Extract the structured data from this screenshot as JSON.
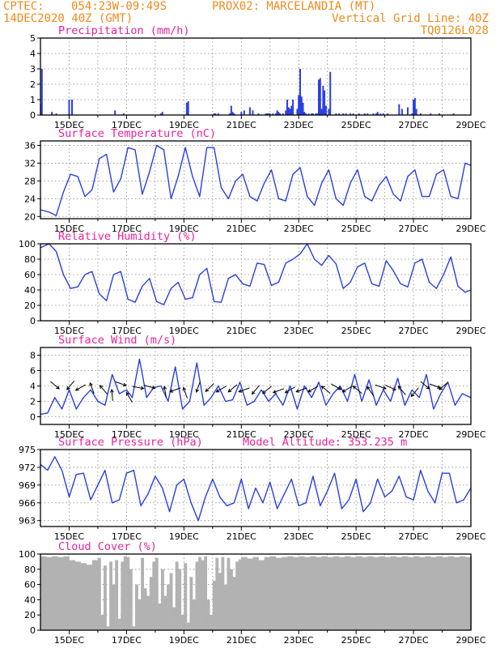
{
  "header": {
    "source": "CPTEC:",
    "location_coords": "054:23W-09:49S",
    "location_name": "PROX02: MARCELANDIA (MT)",
    "date": "14DEC2020 40Z (GMT)",
    "grid_info": "Vertical Grid Line: 40Z",
    "run_code": "TQ0126L028"
  },
  "colors": {
    "line": "#2a3fe0",
    "bar": "#2a3fe0",
    "cloud": "#b2b2b2",
    "title": "#e8239a",
    "header": "#f08a1c"
  },
  "x_axis": {
    "ticks": [
      "15DEC",
      "17DEC",
      "19DEC",
      "21DEC",
      "23DEC",
      "25DEC",
      "27DEC",
      "29DEC"
    ],
    "range_days": [
      14.0,
      29.0
    ]
  },
  "chart_data": [
    {
      "id": "precip",
      "type": "bar",
      "title": "Precipitation (mm/h)",
      "ylim": [
        0,
        5
      ],
      "yticks": [
        0,
        1,
        2,
        3,
        4,
        5
      ],
      "x": [
        14.02,
        14.05,
        14.4,
        14.55,
        15.0,
        15.1,
        16.6,
        16.9,
        18.2,
        18.25,
        19.1,
        19.15,
        20.05,
        20.1,
        20.2,
        20.6,
        20.65,
        20.7,
        20.75,
        21.0,
        21.1,
        21.3,
        21.4,
        21.6,
        21.85,
        21.9,
        21.95,
        22.0,
        22.1,
        22.2,
        22.25,
        22.3,
        22.35,
        22.45,
        22.55,
        22.6,
        22.65,
        22.7,
        22.75,
        22.8,
        22.95,
        23.0,
        23.05,
        23.1,
        23.15,
        23.2,
        23.25,
        23.35,
        23.45,
        23.5,
        23.6,
        23.65,
        23.7,
        23.75,
        23.8,
        23.85,
        23.9,
        23.95,
        24.05,
        24.1,
        24.3,
        24.4,
        24.55,
        24.65,
        24.8,
        24.9,
        25.1,
        25.3,
        25.4,
        25.6,
        25.7,
        25.75,
        25.85,
        25.95,
        26.1,
        26.5,
        26.6,
        26.8,
        26.95,
        27.0,
        27.05,
        27.1,
        27.25,
        27.6,
        27.9,
        28.4
      ],
      "values": [
        0.7,
        3.0,
        0.2,
        0.1,
        1.0,
        1.0,
        0.3,
        0.1,
        0.1,
        0.2,
        0.8,
        0.9,
        0.1,
        0.1,
        0.1,
        0.1,
        0.6,
        0.2,
        0.1,
        0.2,
        0.3,
        0.5,
        0.3,
        0.1,
        0.1,
        0.1,
        0.1,
        0.1,
        0.1,
        0.1,
        0.3,
        0.2,
        0.1,
        0.1,
        0.3,
        1.0,
        0.5,
        0.4,
        0.6,
        1.0,
        0.4,
        1.3,
        3.0,
        1.2,
        0.8,
        0.2,
        0.1,
        0.1,
        0.1,
        0.1,
        0.1,
        0.1,
        2.3,
        2.4,
        0.4,
        1.9,
        1.6,
        0.6,
        0.4,
        2.8,
        0.1,
        0.1,
        0.1,
        0.1,
        0.1,
        0.1,
        0.1,
        0.1,
        0.1,
        0.1,
        0.1,
        0.2,
        0.1,
        0.1,
        0.1,
        0.7,
        0.4,
        0.5,
        0.1,
        1.0,
        1.1,
        0.4,
        0.1,
        0.1,
        0.1,
        0.1
      ]
    },
    {
      "id": "temp",
      "type": "line",
      "title": "Surface Temperature (nC)",
      "ylim": [
        19.5,
        37
      ],
      "yticks": [
        20,
        24,
        28,
        32,
        36
      ],
      "x": [
        14.0,
        14.3,
        14.55,
        14.8,
        15.05,
        15.3,
        15.55,
        15.8,
        16.05,
        16.3,
        16.55,
        16.8,
        17.05,
        17.3,
        17.55,
        17.8,
        18.05,
        18.3,
        18.55,
        18.8,
        19.05,
        19.3,
        19.55,
        19.8,
        20.05,
        20.3,
        20.55,
        20.8,
        21.05,
        21.3,
        21.55,
        21.8,
        22.05,
        22.3,
        22.55,
        22.8,
        23.05,
        23.3,
        23.55,
        23.8,
        24.05,
        24.3,
        24.55,
        24.8,
        25.05,
        25.3,
        25.55,
        25.8,
        26.05,
        26.3,
        26.55,
        26.8,
        27.05,
        27.3,
        27.55,
        27.8,
        28.05,
        28.3,
        28.55,
        28.8,
        29.0
      ],
      "values": [
        21.5,
        21.0,
        20.2,
        25.5,
        29.5,
        29.0,
        24.5,
        26.0,
        33.0,
        34.0,
        25.5,
        28.5,
        35.5,
        35.0,
        25.0,
        30.0,
        36.0,
        35.0,
        24.0,
        29.0,
        35.5,
        29.0,
        24.5,
        35.5,
        35.5,
        26.5,
        24.0,
        28.0,
        29.5,
        24.5,
        23.5,
        27.5,
        30.5,
        24.0,
        23.5,
        29.5,
        31.0,
        24.5,
        22.5,
        27.5,
        30.5,
        24.0,
        22.5,
        27.5,
        30.5,
        24.5,
        23.5,
        27.0,
        29.0,
        25.0,
        23.5,
        29.0,
        30.5,
        24.5,
        24.5,
        29.5,
        30.5,
        24.5,
        24.0,
        32.0,
        31.5
      ]
    },
    {
      "id": "rh",
      "type": "line",
      "title": "Relative Humidity (%)",
      "ylim": [
        0,
        100
      ],
      "yticks": [
        0,
        20,
        40,
        60,
        80,
        100
      ],
      "x": [
        14.0,
        14.3,
        14.55,
        14.8,
        15.05,
        15.3,
        15.55,
        15.8,
        16.05,
        16.3,
        16.55,
        16.8,
        17.05,
        17.3,
        17.55,
        17.8,
        18.05,
        18.3,
        18.55,
        18.8,
        19.05,
        19.3,
        19.55,
        19.8,
        20.05,
        20.3,
        20.55,
        20.8,
        21.05,
        21.3,
        21.55,
        21.8,
        22.05,
        22.3,
        22.55,
        22.8,
        23.05,
        23.3,
        23.55,
        23.8,
        24.05,
        24.3,
        24.55,
        24.8,
        25.05,
        25.3,
        25.55,
        25.8,
        26.05,
        26.3,
        26.55,
        26.8,
        27.05,
        27.3,
        27.55,
        27.8,
        28.05,
        28.3,
        28.55,
        28.8,
        29.0
      ],
      "values": [
        95,
        100,
        90,
        60,
        42,
        44,
        60,
        64,
        35,
        26,
        60,
        64,
        28,
        24,
        45,
        55,
        25,
        21,
        42,
        50,
        28,
        30,
        60,
        68,
        25,
        24,
        55,
        60,
        48,
        45,
        75,
        73,
        46,
        50,
        75,
        80,
        87,
        100,
        80,
        72,
        85,
        74,
        42,
        50,
        70,
        75,
        48,
        45,
        78,
        65,
        48,
        44,
        75,
        80,
        50,
        42,
        60,
        83,
        45,
        37,
        40
      ]
    },
    {
      "id": "wind",
      "type": "line",
      "title": "Surface Wind (m/s)",
      "ylim": [
        -1,
        9
      ],
      "yticks": [
        0,
        2,
        4,
        6,
        8
      ],
      "x": [
        14.0,
        14.25,
        14.5,
        14.75,
        15.0,
        15.25,
        15.5,
        15.75,
        16.0,
        16.25,
        16.5,
        16.75,
        17.0,
        17.2,
        17.45,
        17.7,
        17.95,
        18.2,
        18.45,
        18.7,
        18.95,
        19.2,
        19.45,
        19.7,
        19.95,
        20.2,
        20.45,
        20.7,
        20.95,
        21.2,
        21.45,
        21.7,
        21.95,
        22.2,
        22.45,
        22.7,
        22.95,
        23.2,
        23.45,
        23.7,
        23.95,
        24.2,
        24.45,
        24.7,
        24.95,
        25.2,
        25.45,
        25.7,
        25.95,
        26.2,
        26.45,
        26.7,
        26.95,
        27.2,
        27.45,
        27.7,
        27.95,
        28.2,
        28.45,
        28.7,
        29.0
      ],
      "values": [
        0.3,
        0.5,
        2.5,
        1.0,
        3.5,
        1.0,
        2.5,
        3.5,
        2.0,
        1.5,
        5.5,
        3.0,
        3.5,
        2.5,
        7.5,
        2.5,
        3.8,
        4.0,
        2.0,
        6.5,
        1.0,
        2.0,
        7.0,
        1.5,
        2.5,
        4.0,
        2.0,
        2.2,
        4.5,
        1.5,
        2.0,
        3.5,
        2.0,
        3.0,
        1.5,
        4.0,
        1.0,
        4.0,
        2.5,
        4.5,
        1.5,
        3.0,
        4.0,
        2.0,
        5.5,
        2.0,
        4.8,
        1.5,
        3.5,
        2.0,
        5.0,
        1.5,
        3.5,
        2.5,
        5.5,
        1.0,
        3.0,
        4.5,
        1.5,
        3.0,
        2.5
      ],
      "arrows": [
        {
          "x": 14.5,
          "y": 4.1,
          "dir": -40
        },
        {
          "x": 15.05,
          "y": 4.1,
          "dir": -130
        },
        {
          "x": 15.4,
          "y": 3.8,
          "dir": -150
        },
        {
          "x": 15.8,
          "y": 3.7,
          "dir": 110
        },
        {
          "x": 16.2,
          "y": 3.5,
          "dir": 130
        },
        {
          "x": 16.5,
          "y": 2.8,
          "dir": 95
        },
        {
          "x": 16.8,
          "y": 4.3,
          "dir": -20
        },
        {
          "x": 17.1,
          "y": 2.5,
          "dir": 120
        },
        {
          "x": 17.4,
          "y": 3.8,
          "dir": -10
        },
        {
          "x": 17.8,
          "y": 3.9,
          "dir": -15
        },
        {
          "x": 18.35,
          "y": 3.2,
          "dir": 100
        },
        {
          "x": 18.7,
          "y": 3.5,
          "dir": -160
        },
        {
          "x": 19.05,
          "y": 3.1,
          "dir": 110
        },
        {
          "x": 19.5,
          "y": 3.9,
          "dir": -110
        },
        {
          "x": 19.9,
          "y": 3.8,
          "dir": -135
        },
        {
          "x": 20.3,
          "y": 3.6,
          "dir": -150
        },
        {
          "x": 20.7,
          "y": 3.7,
          "dir": -140
        },
        {
          "x": 21.1,
          "y": 3.5,
          "dir": -160
        },
        {
          "x": 21.5,
          "y": 3.5,
          "dir": -130
        },
        {
          "x": 21.9,
          "y": 3.5,
          "dir": -140
        },
        {
          "x": 22.3,
          "y": 3.4,
          "dir": -160
        },
        {
          "x": 22.7,
          "y": 3.5,
          "dir": -150
        },
        {
          "x": 23.1,
          "y": 3.5,
          "dir": -160
        },
        {
          "x": 23.5,
          "y": 3.6,
          "dir": -150
        },
        {
          "x": 23.95,
          "y": 3.5,
          "dir": 140
        },
        {
          "x": 24.3,
          "y": 3.9,
          "dir": -30
        },
        {
          "x": 24.7,
          "y": 3.6,
          "dir": -150
        },
        {
          "x": 25.05,
          "y": 3.5,
          "dir": 140
        },
        {
          "x": 25.5,
          "y": 3.3,
          "dir": 125
        },
        {
          "x": 25.85,
          "y": 3.9,
          "dir": -20
        },
        {
          "x": 26.2,
          "y": 3.8,
          "dir": -25
        },
        {
          "x": 26.6,
          "y": 3.4,
          "dir": 130
        },
        {
          "x": 27.05,
          "y": 3.2,
          "dir": -130
        },
        {
          "x": 27.4,
          "y": 4.1,
          "dir": -40
        },
        {
          "x": 27.75,
          "y": 4.0,
          "dir": -20
        },
        {
          "x": 28.05,
          "y": 4.0,
          "dir": -140
        }
      ]
    },
    {
      "id": "pressure",
      "type": "line",
      "title": "Surface Pressure (hPa)",
      "annotation": "Model Altitude: 353.235 m",
      "ylim": [
        962,
        975
      ],
      "yticks": [
        963,
        966,
        969,
        972,
        975
      ],
      "x": [
        14.0,
        14.25,
        14.5,
        14.75,
        15.0,
        15.25,
        15.5,
        15.75,
        16.0,
        16.25,
        16.5,
        16.75,
        17.0,
        17.25,
        17.5,
        17.75,
        18.0,
        18.25,
        18.5,
        18.75,
        19.0,
        19.25,
        19.5,
        19.75,
        20.0,
        20.25,
        20.5,
        20.75,
        21.0,
        21.25,
        21.5,
        21.75,
        22.0,
        22.25,
        22.5,
        22.75,
        23.0,
        23.25,
        23.5,
        23.75,
        24.0,
        24.25,
        24.5,
        24.75,
        25.0,
        25.25,
        25.5,
        25.75,
        26.0,
        26.25,
        26.5,
        26.75,
        27.0,
        27.25,
        27.5,
        27.75,
        28.0,
        28.25,
        28.5,
        28.75,
        29.0
      ],
      "values": [
        972.5,
        971.5,
        973.8,
        971.5,
        967.0,
        970.8,
        971.0,
        966.5,
        969.0,
        971.5,
        966.0,
        966.5,
        971.0,
        971.5,
        965.5,
        967.5,
        970.5,
        968.5,
        964.5,
        969.0,
        970.0,
        966.0,
        963.0,
        967.0,
        970.0,
        967.0,
        965.5,
        966.0,
        970.0,
        965.0,
        968.5,
        966.0,
        969.5,
        965.0,
        967.5,
        970.0,
        965.5,
        966.0,
        970.5,
        965.5,
        968.0,
        971.0,
        965.0,
        966.5,
        970.0,
        964.5,
        966.0,
        970.0,
        967.0,
        968.0,
        970.5,
        967.0,
        966.5,
        971.5,
        968.0,
        966.0,
        971.0,
        971.0,
        966.0,
        966.5,
        968.5
      ]
    },
    {
      "id": "cloud",
      "type": "area",
      "title": "Cloud Cover (%)",
      "ylim": [
        0,
        100
      ],
      "yticks": [
        0,
        20,
        40,
        60,
        80,
        100
      ],
      "x": [
        14.0,
        14.2,
        14.4,
        14.6,
        14.8,
        15.0,
        15.2,
        15.4,
        15.6,
        15.8,
        16.0,
        16.1,
        16.2,
        16.3,
        16.4,
        16.5,
        16.6,
        16.7,
        16.8,
        16.9,
        17.0,
        17.1,
        17.2,
        17.3,
        17.4,
        17.5,
        17.6,
        17.7,
        17.8,
        17.9,
        18.0,
        18.1,
        18.2,
        18.3,
        18.4,
        18.5,
        18.6,
        18.7,
        18.8,
        18.9,
        19.0,
        19.1,
        19.2,
        19.3,
        19.4,
        19.5,
        19.6,
        19.7,
        19.8,
        19.9,
        20.0,
        20.1,
        20.2,
        20.3,
        20.4,
        20.5,
        20.6,
        20.7,
        20.8,
        20.9,
        21.0,
        21.2,
        21.4,
        21.6,
        21.8,
        22.0,
        22.2,
        22.4,
        22.6,
        22.8,
        23.0,
        23.2,
        23.4,
        23.6,
        23.8,
        24.0,
        24.2,
        24.4,
        24.6,
        24.8,
        25.0,
        25.2,
        25.4,
        25.6,
        25.8,
        26.0,
        26.2,
        26.4,
        26.6,
        26.8,
        27.0,
        27.2,
        27.4,
        27.6,
        27.8,
        28.0,
        28.2,
        28.4,
        28.6,
        28.8,
        29.0
      ],
      "values": [
        97,
        96,
        97,
        96,
        97,
        92,
        90,
        88,
        86,
        92,
        95,
        20,
        85,
        5,
        90,
        60,
        92,
        15,
        90,
        97,
        96,
        80,
        5,
        60,
        40,
        95,
        55,
        45,
        70,
        90,
        95,
        35,
        80,
        45,
        60,
        75,
        30,
        90,
        80,
        20,
        88,
        10,
        70,
        40,
        90,
        96,
        92,
        97,
        40,
        20,
        65,
        95,
        75,
        96,
        60,
        95,
        80,
        70,
        90,
        93,
        96,
        94,
        96,
        92,
        96,
        97,
        95,
        96,
        97,
        96,
        97,
        96,
        97,
        96,
        97,
        96,
        97,
        96,
        97,
        96,
        97,
        96,
        97,
        96,
        97,
        96,
        97,
        96,
        97,
        96,
        97,
        96,
        97,
        96,
        97,
        96,
        97,
        96,
        97,
        96,
        97
      ]
    }
  ]
}
